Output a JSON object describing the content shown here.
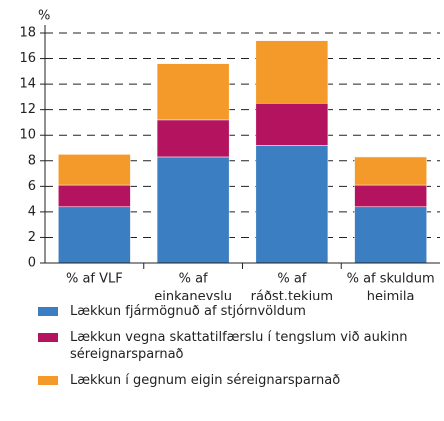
{
  "chart_data": {
    "type": "stacked_bar",
    "y_label": "%",
    "categories": [
      [
        "% af VLF"
      ],
      [
        "% af",
        "einkaneyslu"
      ],
      [
        "% af",
        "ráðst.tekjum"
      ],
      [
        "% af skuldum",
        "heimila"
      ]
    ],
    "series": [
      {
        "name": "Lækkun fjármögnuð af stjórnvöldum",
        "color": "#3b7fc2",
        "values": [
          4.4,
          8.3,
          9.2,
          4.4
        ]
      },
      {
        "name": "Lækkun vegna skattatilfærslu í tengslum við aukinn séreignarsparnað",
        "color": "#b3135f",
        "values": [
          1.7,
          2.9,
          3.3,
          1.7
        ]
      },
      {
        "name": "Lækkun í gegnum eigin séreignarsparnað",
        "color": "#f39a2b",
        "values": [
          2.4,
          4.4,
          4.9,
          2.2
        ]
      }
    ],
    "ylim": [
      0,
      18
    ],
    "yticks": [
      0,
      2,
      4,
      6,
      8,
      10,
      12,
      14,
      16,
      18
    ],
    "grid": true
  }
}
